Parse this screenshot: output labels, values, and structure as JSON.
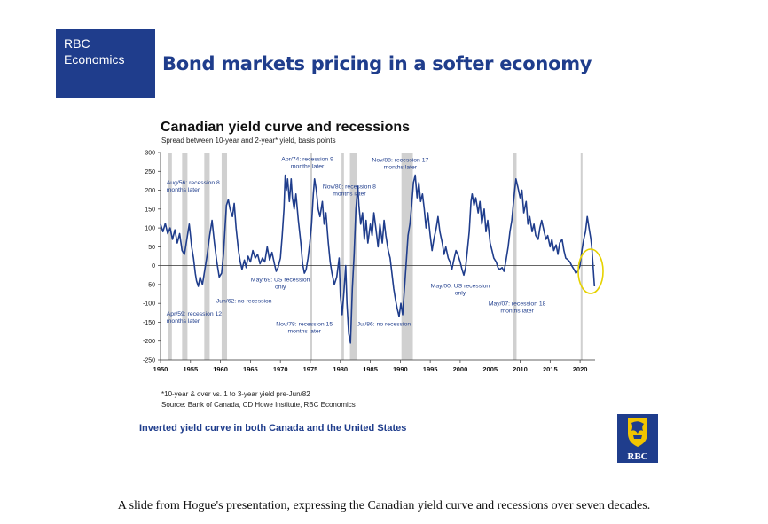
{
  "slide": {
    "brand_line1": "RBC",
    "brand_line2": "Economics",
    "title": "Bond markets pricing in a softer economy",
    "conclusion": "Inverted yield curve in both Canada and the United States",
    "logo_text": "RBC",
    "logo_icon": "rbc-lion-shield-icon",
    "brand_color": "#1f3d8c",
    "logo_gold": "#f1c400"
  },
  "footnotes": [
    "*10-year & over vs. 1 to 3-year yield pre-Jun/82",
    "Source: Bank of Canada, CD Howe Institute, RBC Economics"
  ],
  "caption": "A slide from Hogue's presentation, expressing the Canadian yield curve and recessions over seven decades.",
  "chart_data": {
    "type": "line",
    "title": "Canadian yield curve and recessions",
    "subtitle": "Spread between 10-year and 2-year* yield, basis points",
    "xlabel": "",
    "ylabel": "",
    "xlim": [
      1950,
      2022.5
    ],
    "ylim": [
      -250,
      300
    ],
    "x_ticks": [
      "1950",
      "1955",
      "1960",
      "1965",
      "1970",
      "1975",
      "1980",
      "1985",
      "1990",
      "1995",
      "2000",
      "2005",
      "2010",
      "2015",
      "2020"
    ],
    "y_ticks": [
      "300",
      "250",
      "200",
      "150",
      "100",
      "50",
      "0",
      "-50",
      "-100",
      "-150",
      "-200",
      "-250"
    ],
    "grid": false,
    "line_color": "#1f3d8c",
    "recession_color": "#d0d0d0",
    "highlight_color": "#e6d200",
    "recessions": [
      [
        1951.3,
        1951.9
      ],
      [
        1953.6,
        1954.5
      ],
      [
        1957.3,
        1958.2
      ],
      [
        1960.2,
        1961.1
      ],
      [
        1974.9,
        1975.3
      ],
      [
        1980.2,
        1980.6
      ],
      [
        1981.6,
        1982.8
      ],
      [
        1990.2,
        1992.1
      ],
      [
        2008.8,
        2009.4
      ],
      [
        2020.1,
        2020.4
      ]
    ],
    "series": [
      {
        "points": [
          [
            1950,
            110
          ],
          [
            1950.4,
            90
          ],
          [
            1950.8,
            112
          ],
          [
            1951.2,
            85
          ],
          [
            1951.6,
            100
          ],
          [
            1952,
            70
          ],
          [
            1952.4,
            95
          ],
          [
            1952.8,
            60
          ],
          [
            1953.2,
            85
          ],
          [
            1953.6,
            40
          ],
          [
            1954,
            30
          ],
          [
            1954.4,
            70
          ],
          [
            1954.8,
            110
          ],
          [
            1955,
            80
          ],
          [
            1955.2,
            50
          ],
          [
            1955.5,
            20
          ],
          [
            1955.8,
            -20
          ],
          [
            1956,
            -40
          ],
          [
            1956.3,
            -55
          ],
          [
            1956.6,
            -30
          ],
          [
            1957,
            -50
          ],
          [
            1957.4,
            -10
          ],
          [
            1957.8,
            30
          ],
          [
            1958.2,
            80
          ],
          [
            1958.6,
            120
          ],
          [
            1959,
            60
          ],
          [
            1959.4,
            10
          ],
          [
            1959.8,
            -30
          ],
          [
            1960.2,
            -20
          ],
          [
            1960.5,
            30
          ],
          [
            1960.8,
            110
          ],
          [
            1961,
            160
          ],
          [
            1961.3,
            175
          ],
          [
            1961.6,
            150
          ],
          [
            1962,
            130
          ],
          [
            1962.3,
            165
          ],
          [
            1962.6,
            100
          ],
          [
            1963,
            40
          ],
          [
            1963.3,
            10
          ],
          [
            1963.6,
            -10
          ],
          [
            1964,
            15
          ],
          [
            1964.3,
            -5
          ],
          [
            1964.6,
            25
          ],
          [
            1965,
            10
          ],
          [
            1965.4,
            40
          ],
          [
            1965.8,
            20
          ],
          [
            1966.2,
            30
          ],
          [
            1966.6,
            5
          ],
          [
            1967,
            20
          ],
          [
            1967.4,
            10
          ],
          [
            1967.8,
            50
          ],
          [
            1968.2,
            15
          ],
          [
            1968.6,
            35
          ],
          [
            1969,
            5
          ],
          [
            1969.3,
            -15
          ],
          [
            1969.6,
            -5
          ],
          [
            1970,
            20
          ],
          [
            1970.3,
            80
          ],
          [
            1970.6,
            150
          ],
          [
            1970.8,
            240
          ],
          [
            1971,
            200
          ],
          [
            1971.2,
            230
          ],
          [
            1971.5,
            170
          ],
          [
            1971.8,
            230
          ],
          [
            1972,
            180
          ],
          [
            1972.3,
            150
          ],
          [
            1972.6,
            190
          ],
          [
            1973,
            120
          ],
          [
            1973.4,
            60
          ],
          [
            1973.7,
            5
          ],
          [
            1974,
            -20
          ],
          [
            1974.3,
            -10
          ],
          [
            1974.6,
            20
          ],
          [
            1974.9,
            60
          ],
          [
            1975.2,
            110
          ],
          [
            1975.5,
            190
          ],
          [
            1975.7,
            230
          ],
          [
            1976,
            200
          ],
          [
            1976.3,
            150
          ],
          [
            1976.6,
            130
          ],
          [
            1977,
            170
          ],
          [
            1977.3,
            110
          ],
          [
            1977.6,
            140
          ],
          [
            1978,
            60
          ],
          [
            1978.3,
            10
          ],
          [
            1978.6,
            -20
          ],
          [
            1979,
            -50
          ],
          [
            1979.4,
            -30
          ],
          [
            1979.8,
            20
          ],
          [
            1980,
            -80
          ],
          [
            1980.3,
            -130
          ],
          [
            1980.6,
            -70
          ],
          [
            1980.9,
            0
          ],
          [
            1981.1,
            -100
          ],
          [
            1981.4,
            -180
          ],
          [
            1981.7,
            -205
          ],
          [
            1982,
            -60
          ],
          [
            1982.3,
            30
          ],
          [
            1982.6,
            150
          ],
          [
            1982.9,
            210
          ],
          [
            1983.1,
            160
          ],
          [
            1983.4,
            110
          ],
          [
            1983.7,
            140
          ],
          [
            1984,
            70
          ],
          [
            1984.3,
            120
          ],
          [
            1984.6,
            60
          ],
          [
            1985,
            110
          ],
          [
            1985.3,
            80
          ],
          [
            1985.6,
            140
          ],
          [
            1986,
            90
          ],
          [
            1986.3,
            50
          ],
          [
            1986.6,
            110
          ],
          [
            1987,
            60
          ],
          [
            1987.3,
            120
          ],
          [
            1987.6,
            80
          ],
          [
            1988,
            40
          ],
          [
            1988.3,
            20
          ],
          [
            1988.6,
            -20
          ],
          [
            1988.9,
            -60
          ],
          [
            1989.2,
            -90
          ],
          [
            1989.5,
            -115
          ],
          [
            1989.8,
            -135
          ],
          [
            1990.1,
            -100
          ],
          [
            1990.4,
            -130
          ],
          [
            1990.7,
            -60
          ],
          [
            1991,
            10
          ],
          [
            1991.3,
            80
          ],
          [
            1991.6,
            110
          ],
          [
            1991.9,
            160
          ],
          [
            1992.2,
            220
          ],
          [
            1992.5,
            240
          ],
          [
            1992.8,
            180
          ],
          [
            1993.1,
            220
          ],
          [
            1993.4,
            170
          ],
          [
            1993.7,
            190
          ],
          [
            1994,
            150
          ],
          [
            1994.3,
            100
          ],
          [
            1994.6,
            140
          ],
          [
            1995,
            80
          ],
          [
            1995.3,
            40
          ],
          [
            1995.6,
            70
          ],
          [
            1996,
            100
          ],
          [
            1996.3,
            130
          ],
          [
            1996.6,
            90
          ],
          [
            1997,
            60
          ],
          [
            1997.3,
            30
          ],
          [
            1997.6,
            50
          ],
          [
            1998,
            20
          ],
          [
            1998.3,
            10
          ],
          [
            1998.6,
            -10
          ],
          [
            1999,
            20
          ],
          [
            1999.3,
            40
          ],
          [
            1999.6,
            30
          ],
          [
            2000,
            10
          ],
          [
            2000.3,
            -10
          ],
          [
            2000.6,
            -25
          ],
          [
            2000.9,
            -5
          ],
          [
            2001.2,
            40
          ],
          [
            2001.5,
            90
          ],
          [
            2001.8,
            170
          ],
          [
            2002,
            190
          ],
          [
            2002.3,
            160
          ],
          [
            2002.6,
            180
          ],
          [
            2003,
            140
          ],
          [
            2003.3,
            170
          ],
          [
            2003.6,
            110
          ],
          [
            2004,
            150
          ],
          [
            2004.3,
            90
          ],
          [
            2004.6,
            120
          ],
          [
            2005,
            60
          ],
          [
            2005.3,
            40
          ],
          [
            2005.6,
            20
          ],
          [
            2006,
            10
          ],
          [
            2006.3,
            -5
          ],
          [
            2006.6,
            -10
          ],
          [
            2007,
            -5
          ],
          [
            2007.3,
            -15
          ],
          [
            2007.6,
            10
          ],
          [
            2008,
            50
          ],
          [
            2008.3,
            90
          ],
          [
            2008.6,
            120
          ],
          [
            2008.9,
            170
          ],
          [
            2009.1,
            200
          ],
          [
            2009.3,
            230
          ],
          [
            2009.6,
            210
          ],
          [
            2010,
            180
          ],
          [
            2010.3,
            200
          ],
          [
            2010.6,
            140
          ],
          [
            2011,
            170
          ],
          [
            2011.3,
            110
          ],
          [
            2011.6,
            130
          ],
          [
            2012,
            90
          ],
          [
            2012.3,
            110
          ],
          [
            2012.6,
            80
          ],
          [
            2013,
            70
          ],
          [
            2013.3,
            100
          ],
          [
            2013.6,
            120
          ],
          [
            2014,
            90
          ],
          [
            2014.3,
            70
          ],
          [
            2014.6,
            80
          ],
          [
            2015,
            50
          ],
          [
            2015.3,
            70
          ],
          [
            2015.6,
            40
          ],
          [
            2016,
            55
          ],
          [
            2016.3,
            30
          ],
          [
            2016.6,
            60
          ],
          [
            2017,
            70
          ],
          [
            2017.3,
            40
          ],
          [
            2017.6,
            20
          ],
          [
            2018,
            15
          ],
          [
            2018.3,
            10
          ],
          [
            2018.6,
            0
          ],
          [
            2019,
            -10
          ],
          [
            2019.3,
            -20
          ],
          [
            2019.6,
            -15
          ],
          [
            2020,
            0
          ],
          [
            2020.3,
            40
          ],
          [
            2020.6,
            70
          ],
          [
            2020.9,
            90
          ],
          [
            2021.2,
            130
          ],
          [
            2021.5,
            100
          ],
          [
            2021.8,
            70
          ],
          [
            2022,
            40
          ],
          [
            2022.2,
            -10
          ],
          [
            2022.4,
            -55
          ]
        ]
      }
    ],
    "annotations": [
      {
        "lines": [
          "Aug/56: recession 8",
          "months later"
        ],
        "x": 1951,
        "y": 215,
        "anchor": "start"
      },
      {
        "lines": [
          "Apr/74: recession 9",
          "months later"
        ],
        "x": 1974.5,
        "y": 278,
        "anchor": "middle"
      },
      {
        "lines": [
          "Nov/80: recession 8",
          "months later"
        ],
        "x": 1981.5,
        "y": 205,
        "anchor": "middle"
      },
      {
        "lines": [
          "Nov/88: recession 17",
          "months later"
        ],
        "x": 1990,
        "y": 275,
        "anchor": "middle"
      },
      {
        "lines": [
          "May/69: US recession",
          "only"
        ],
        "x": 1970,
        "y": -42,
        "anchor": "middle"
      },
      {
        "lines": [
          "Jun/62: no recession"
        ],
        "x": 1959.3,
        "y": -98,
        "anchor": "start"
      },
      {
        "lines": [
          "Apr/59: recession 12",
          "months later"
        ],
        "x": 1951,
        "y": -132,
        "anchor": "start"
      },
      {
        "lines": [
          "Nov/78: recession 15",
          "months later"
        ],
        "x": 1974,
        "y": -160,
        "anchor": "middle"
      },
      {
        "lines": [
          "Jul/86: no recession"
        ],
        "x": 1982.8,
        "y": -160,
        "anchor": "start"
      },
      {
        "lines": [
          "May/00: US recession",
          "only"
        ],
        "x": 2000,
        "y": -58,
        "anchor": "middle"
      },
      {
        "lines": [
          "May/07: recession 18",
          "months later"
        ],
        "x": 2009.5,
        "y": -105,
        "anchor": "middle"
      }
    ]
  }
}
